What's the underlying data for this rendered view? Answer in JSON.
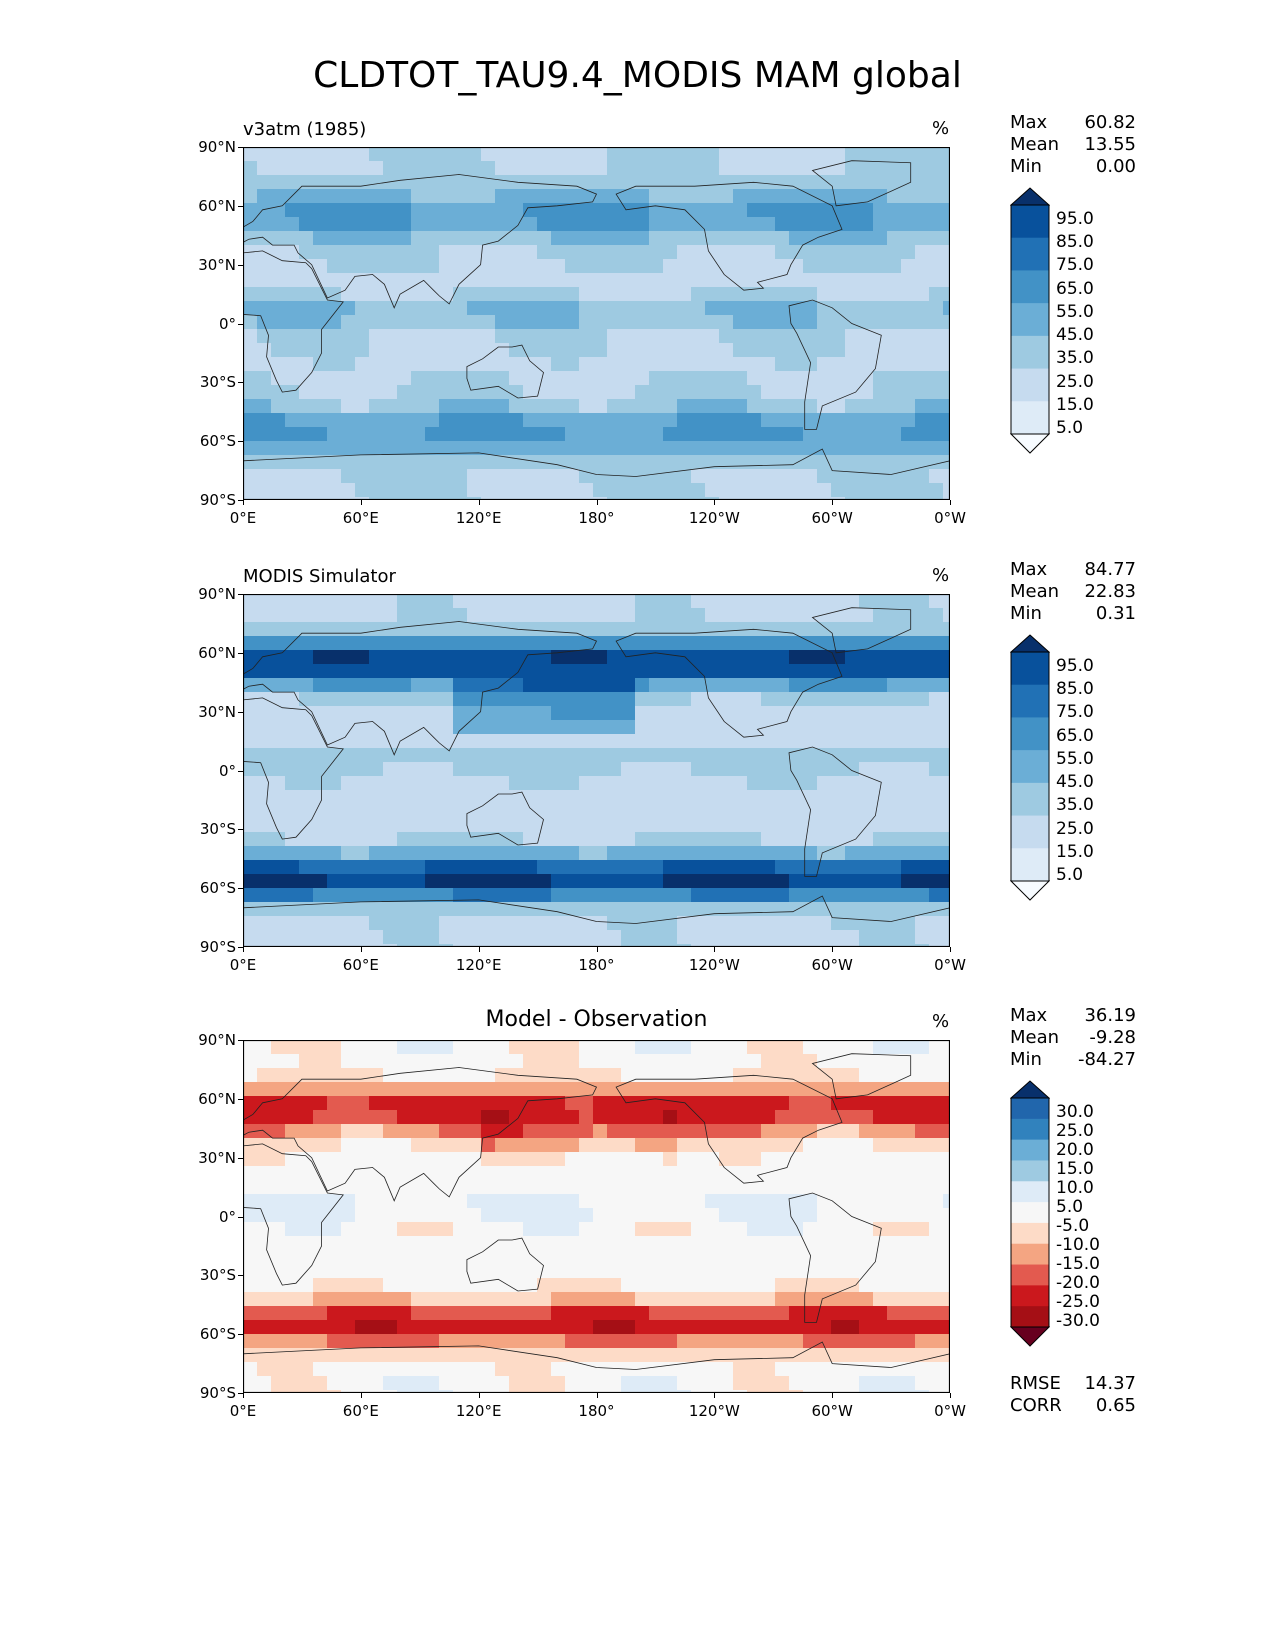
{
  "title": "CLDTOT_TAU9.4_MODIS MAM global",
  "panels": [
    {
      "title": "v3atm (1985)",
      "unit": "%",
      "stats": [
        [
          "Max",
          "60.82"
        ],
        [
          "Mean",
          "13.55"
        ],
        [
          "Min",
          "0.00"
        ]
      ],
      "colorbar": [
        "95.0",
        "85.0",
        "75.0",
        "65.0",
        "55.0",
        "45.0",
        "35.0",
        "25.0",
        "15.0",
        "5.0"
      ]
    },
    {
      "title": "MODIS Simulator",
      "unit": "%",
      "stats": [
        [
          "Max",
          "84.77"
        ],
        [
          "Mean",
          "22.83"
        ],
        [
          "Min",
          "0.31"
        ]
      ],
      "colorbar": [
        "95.0",
        "85.0",
        "75.0",
        "65.0",
        "55.0",
        "45.0",
        "35.0",
        "25.0",
        "15.0",
        "5.0"
      ]
    },
    {
      "title": "Model - Observation",
      "unit": "%",
      "stats": [
        [
          "Max",
          "36.19"
        ],
        [
          "Mean",
          "-9.28"
        ],
        [
          "Min",
          "-84.27"
        ]
      ],
      "colorbar": [
        "30.0",
        "25.0",
        "20.0",
        "15.0",
        "10.0",
        "5.0",
        "-5.0",
        "-10.0",
        "-15.0",
        "-20.0",
        "-25.0",
        "-30.0"
      ],
      "footer": [
        [
          "RMSE",
          "14.37"
        ],
        [
          "CORR",
          "0.65"
        ]
      ]
    }
  ],
  "lat_ticks": [
    "90°N",
    "60°N",
    "30°N",
    "0°",
    "30°S",
    "60°S",
    "90°S"
  ],
  "lon_ticks": [
    "0°E",
    "60°E",
    "120°E",
    "180°",
    "120°W",
    "60°W",
    "0°W"
  ],
  "colors": {
    "blues": [
      "#f7fbff",
      "#deebf7",
      "#c6dbef",
      "#9ecae1",
      "#6baed6",
      "#4292c6",
      "#2171b5",
      "#08519c",
      "#08306b"
    ],
    "diff": [
      "#67001f",
      "#a50f15",
      "#cb181d",
      "#e35a4f",
      "#f4a582",
      "#fddbc7",
      "#f7f7f7",
      "#deebf7",
      "#9ecae1",
      "#6baed6",
      "#3182bd",
      "#2166ac",
      "#08306b"
    ]
  }
}
